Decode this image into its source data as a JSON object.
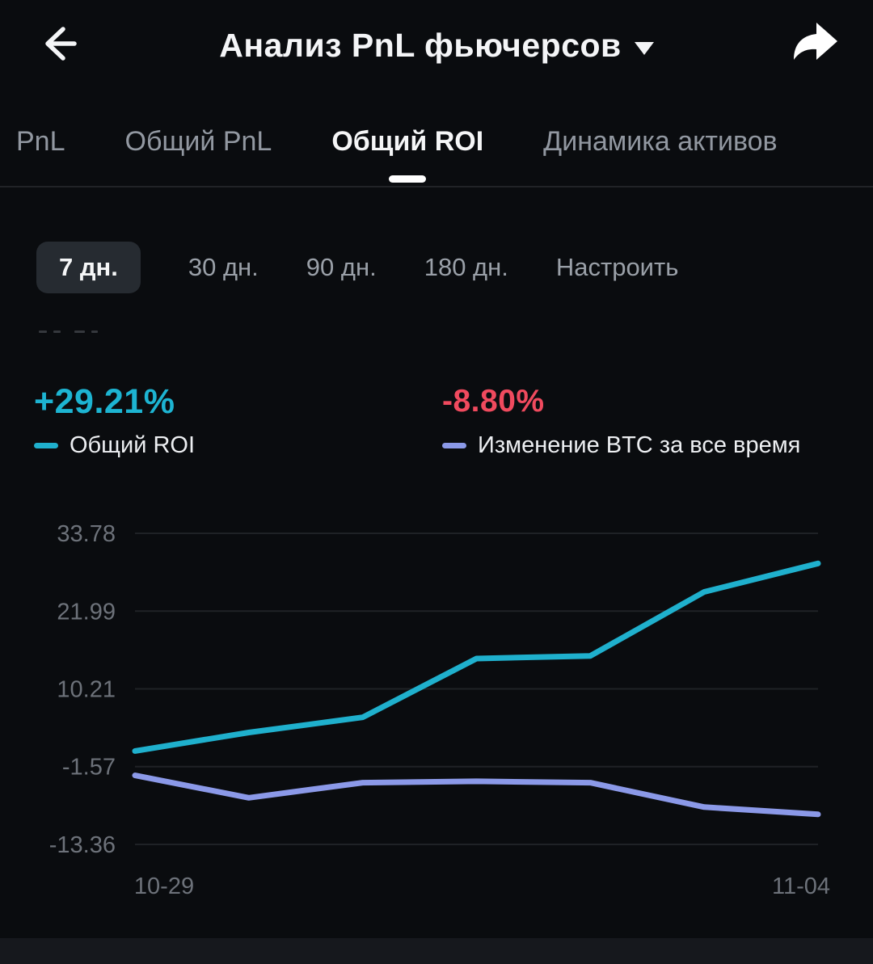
{
  "header": {
    "title": "Анализ PnL фьючерсов"
  },
  "tabs": {
    "items": [
      {
        "label": "PnL",
        "active": false
      },
      {
        "label": "Общий PnL",
        "active": false
      },
      {
        "label": "Общий ROI",
        "active": true
      },
      {
        "label": "Динамика активов",
        "active": false
      }
    ]
  },
  "periods": {
    "items": [
      {
        "label": "7 дн.",
        "selected": true
      },
      {
        "label": "30 дн.",
        "selected": false
      },
      {
        "label": "90 дн.",
        "selected": false
      },
      {
        "label": "180 дн.",
        "selected": false
      },
      {
        "label": "Настроить",
        "selected": false
      }
    ]
  },
  "stats": {
    "roi": {
      "value": "+29.21%",
      "label": "Общий ROI",
      "color": "#1db4d2"
    },
    "btc": {
      "value": "-8.80%",
      "label": "Изменение BTC за все время",
      "color": "#f04a5e"
    }
  },
  "chart_data": {
    "type": "line",
    "title": "",
    "series": [
      {
        "name": "Общий ROI",
        "color": "#1fb0cd",
        "values": [
          0.8,
          3.6,
          5.9,
          14.8,
          15.2,
          24.9,
          29.21
        ]
      },
      {
        "name": "Изменение BTC за все время",
        "color": "#8b99e8",
        "values": [
          -2.9,
          -6.3,
          -4.0,
          -3.8,
          -4.0,
          -7.7,
          -8.8
        ]
      }
    ],
    "y_ticks": [
      33.78,
      21.99,
      10.21,
      -1.57,
      -13.36
    ],
    "x_ticks": [
      {
        "label": "10-29",
        "index": 0
      },
      {
        "label": "11-04",
        "index": 6
      }
    ],
    "ylim": [
      -18.5,
      38.5
    ],
    "grid": "horizontal",
    "legend_position": "above-chart",
    "grid_color": "#1f2226"
  }
}
